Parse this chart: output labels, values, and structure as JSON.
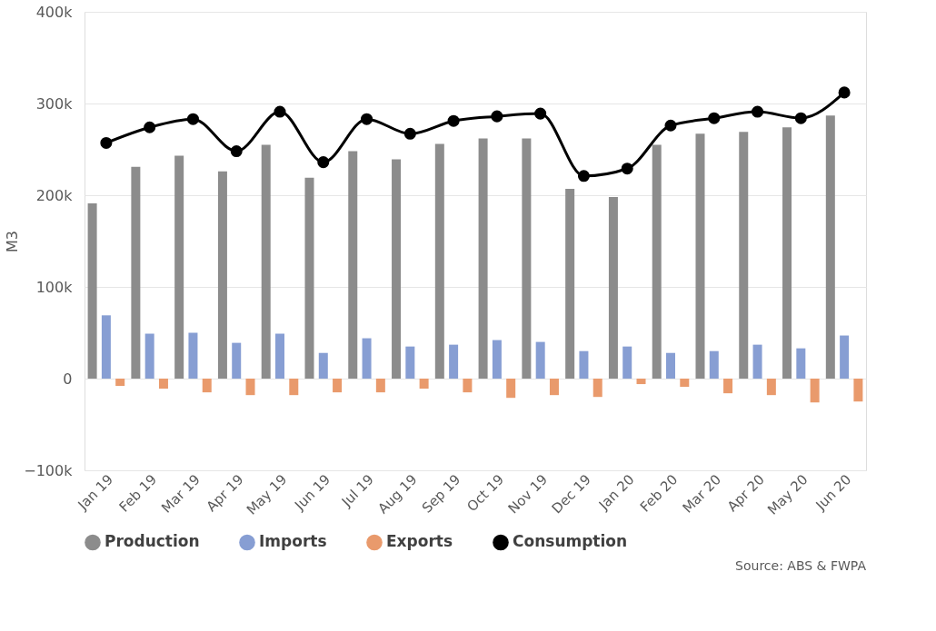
{
  "chart_data": {
    "type": "bar",
    "categories": [
      "Jan 19",
      "Feb 19",
      "Mar 19",
      "Apr 19",
      "May 19",
      "Jun 19",
      "Jul 19",
      "Aug 19",
      "Sep 19",
      "Oct 19",
      "Nov 19",
      "Dec 19",
      "Jan 20",
      "Feb 20",
      "Mar 20",
      "Apr 20",
      "May 20",
      "Jun 20"
    ],
    "series": [
      {
        "name": "Production",
        "color": "#8c8c8c",
        "values": [
          191000,
          231000,
          243000,
          226000,
          255000,
          219000,
          248000,
          239000,
          256000,
          262000,
          262000,
          207000,
          198000,
          255000,
          267000,
          269000,
          274000,
          287000
        ]
      },
      {
        "name": "Imports",
        "color": "#879ed3",
        "values": [
          69000,
          49000,
          50000,
          39000,
          49000,
          28000,
          44000,
          35000,
          37000,
          42000,
          40000,
          30000,
          35000,
          28000,
          30000,
          37000,
          33000,
          47000
        ]
      },
      {
        "name": "Exports",
        "color": "#e99a6c",
        "values": [
          -8000,
          -11000,
          -15000,
          -18000,
          -18000,
          -15000,
          -15000,
          -11000,
          -15000,
          -21000,
          -18000,
          -20000,
          -6000,
          -9000,
          -16000,
          -18000,
          -26000,
          -25000
        ]
      },
      {
        "name": "Consumption",
        "color": "#000000",
        "type": "line",
        "marker": "circle",
        "values": [
          257000,
          274000,
          283000,
          248000,
          291000,
          236000,
          283000,
          267000,
          281000,
          286000,
          289000,
          221000,
          229000,
          276000,
          284000,
          291000,
          284000,
          312000
        ]
      }
    ],
    "ylabel": "M3",
    "ylim": [
      -100000,
      400000
    ],
    "yticks": [
      {
        "value": -100000,
        "label": "−100k"
      },
      {
        "value": 0,
        "label": "0"
      },
      {
        "value": 100000,
        "label": "100k"
      },
      {
        "value": 200000,
        "label": "200k"
      },
      {
        "value": 300000,
        "label": "300k"
      },
      {
        "value": 400000,
        "label": "400k"
      }
    ],
    "grid": "y",
    "legend": "bottom",
    "annotations": [
      "Source: ABS & FWPA"
    ]
  }
}
